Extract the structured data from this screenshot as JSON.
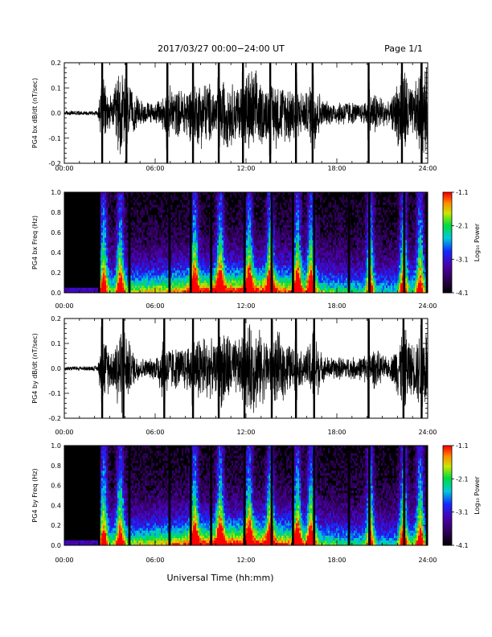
{
  "header": {
    "title": "2017/03/27  00:00−24:00 UT",
    "page": "Page 1/1"
  },
  "xlabel": "Universal Time (hh:mm)",
  "chart_data": [
    {
      "type": "line",
      "ylabel": "PG4 bx dB/dt (nT/sec)",
      "xlim": [
        0,
        24
      ],
      "ylim": [
        -0.2,
        0.2
      ],
      "xticks": [
        "00:00",
        "06:00",
        "12:00",
        "18:00",
        "24:00"
      ],
      "yticks": [
        "0.2",
        "0.1",
        "0.0",
        "-0.1",
        "-0.2"
      ],
      "envelope": {
        "t": [
          0.0,
          1.5,
          2.2,
          2.5,
          2.8,
          3.2,
          3.5,
          3.8,
          4.1,
          4.5,
          5.0,
          5.5,
          6.0,
          6.5,
          7.0,
          7.5,
          8.0,
          8.5,
          9.0,
          9.5,
          10.0,
          10.5,
          11.0,
          11.5,
          12.0,
          12.5,
          13.0,
          13.5,
          14.0,
          14.5,
          15.0,
          15.5,
          16.0,
          16.5,
          17.0,
          17.5,
          18.0,
          18.5,
          19.0,
          19.5,
          20.0,
          20.5,
          21.0,
          21.5,
          22.0,
          22.5,
          23.0,
          23.5,
          24.0
        ],
        "amplitude": [
          0.01,
          0.01,
          0.012,
          0.16,
          0.1,
          0.06,
          0.19,
          0.2,
          0.15,
          0.09,
          0.06,
          0.05,
          0.04,
          0.08,
          0.12,
          0.1,
          0.12,
          0.12,
          0.15,
          0.14,
          0.1,
          0.16,
          0.14,
          0.12,
          0.18,
          0.2,
          0.14,
          0.12,
          0.15,
          0.12,
          0.14,
          0.1,
          0.09,
          0.18,
          0.06,
          0.05,
          0.05,
          0.06,
          0.05,
          0.04,
          0.06,
          0.1,
          0.07,
          0.04,
          0.14,
          0.2,
          0.1,
          0.19,
          0.2
        ]
      },
      "spikes": [
        2.5,
        4.1,
        6.8,
        8.5,
        10.2,
        11.8,
        13.6,
        15.3,
        16.4,
        20.1,
        22.3,
        23.6
      ]
    },
    {
      "type": "heatmap",
      "ylabel": "PG4 bx Freq (Hz)",
      "xlim": [
        0,
        24
      ],
      "ylim": [
        0.0,
        1.0
      ],
      "xticks": [
        "00:00",
        "06:00",
        "12:00",
        "18:00",
        "24:00"
      ],
      "yticks": [
        "1.0",
        "0.8",
        "0.6",
        "0.4",
        "0.2",
        "0.0"
      ],
      "colorbar_label": "Log₁₀ Power",
      "colorbar_ticks": [
        "-1.1",
        "-2.1",
        "-3.1",
        "-4.1"
      ],
      "clim": [
        -4.1,
        -1.1
      ],
      "gaps": [
        2.3,
        4.3,
        6.95,
        8.35,
        9.7,
        11.9,
        13.7,
        15.1,
        16.5,
        18.8,
        20.15,
        22.45,
        23.95
      ],
      "bursts": [
        2.6,
        3.7,
        8.6,
        10.3,
        12.2,
        13.6,
        15.4,
        16.3,
        20.2,
        22.4,
        23.5
      ]
    },
    {
      "type": "line",
      "ylabel": "PG4 by dB/dt (nT/sec)",
      "xlim": [
        0,
        24
      ],
      "ylim": [
        -0.2,
        0.2
      ],
      "xticks": [
        "00:00",
        "06:00",
        "12:00",
        "18:00",
        "24:00"
      ],
      "yticks": [
        "0.2",
        "0.1",
        "0.0",
        "-0.1",
        "-0.2"
      ],
      "envelope": {
        "t": [
          0.0,
          1.5,
          2.2,
          2.5,
          2.8,
          3.2,
          3.5,
          3.8,
          4.1,
          4.5,
          5.0,
          5.5,
          6.0,
          6.5,
          7.0,
          7.5,
          8.0,
          8.5,
          9.0,
          9.5,
          10.0,
          10.5,
          11.0,
          11.5,
          12.0,
          12.5,
          13.0,
          13.5,
          14.0,
          14.5,
          15.0,
          15.5,
          16.0,
          16.5,
          17.0,
          17.5,
          18.0,
          18.5,
          19.0,
          19.5,
          20.0,
          20.5,
          21.0,
          21.5,
          22.0,
          22.5,
          23.0,
          23.5,
          24.0
        ],
        "amplitude": [
          0.01,
          0.01,
          0.012,
          0.16,
          0.12,
          0.08,
          0.18,
          0.2,
          0.16,
          0.08,
          0.05,
          0.04,
          0.05,
          0.14,
          0.1,
          0.09,
          0.1,
          0.13,
          0.16,
          0.14,
          0.1,
          0.2,
          0.14,
          0.12,
          0.19,
          0.2,
          0.16,
          0.12,
          0.16,
          0.14,
          0.1,
          0.08,
          0.08,
          0.19,
          0.06,
          0.05,
          0.05,
          0.05,
          0.05,
          0.05,
          0.07,
          0.09,
          0.06,
          0.04,
          0.12,
          0.2,
          0.1,
          0.18,
          0.2
        ]
      },
      "spikes": [
        2.5,
        3.9,
        6.6,
        8.5,
        10.2,
        11.9,
        13.7,
        15.3,
        16.5,
        20.1,
        22.4,
        23.6
      ]
    },
    {
      "type": "heatmap",
      "ylabel": "PG4 by Freq (Hz)",
      "xlim": [
        0,
        24
      ],
      "ylim": [
        0.0,
        1.0
      ],
      "xticks": [
        "00:00",
        "06:00",
        "12:00",
        "18:00",
        "24:00"
      ],
      "yticks": [
        "1.0",
        "0.8",
        "0.6",
        "0.4",
        "0.2",
        "0.0"
      ],
      "colorbar_label": "Log₁₀ Power",
      "colorbar_ticks": [
        "-1.1",
        "-2.1",
        "-3.1",
        "-4.1"
      ],
      "clim": [
        -4.1,
        -1.1
      ],
      "gaps": [
        2.3,
        4.3,
        6.95,
        8.35,
        9.7,
        11.9,
        13.7,
        15.1,
        16.5,
        18.8,
        20.15,
        22.45,
        23.95
      ],
      "bursts": [
        2.6,
        3.7,
        8.6,
        10.3,
        12.2,
        13.6,
        15.4,
        16.3,
        20.2,
        22.4,
        23.5
      ]
    }
  ]
}
